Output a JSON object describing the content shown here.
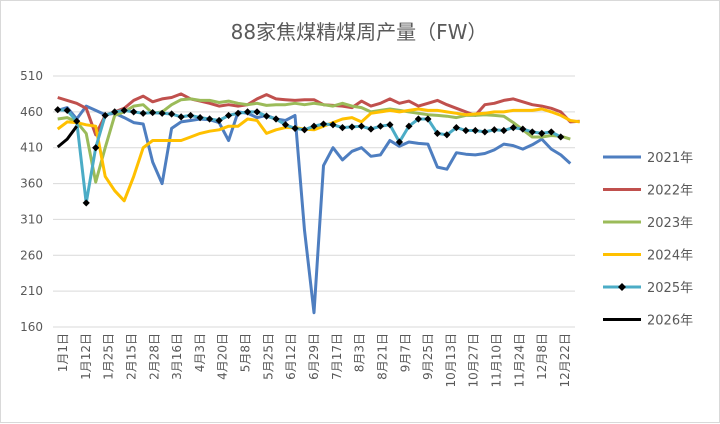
{
  "chart_data": {
    "type": "line",
    "title": "88家焦煤精煤周产量（FW）",
    "ylim": [
      160,
      510
    ],
    "yticks": [
      160,
      210,
      260,
      310,
      360,
      410,
      460,
      510
    ],
    "x_tick_labels": [
      "1月1日",
      "1月12日",
      "1月25日",
      "2月15日",
      "2月28日",
      "3月16日",
      "4月3日",
      "4月20日",
      "5月8日",
      "5月25日",
      "6月12日",
      "6月29日",
      "7月17日",
      "8月3日",
      "8月21日",
      "9月7日",
      "9月25日",
      "10月13日",
      "10月27日",
      "11月10日",
      "11月24日",
      "12月8日",
      "12月22日"
    ],
    "n_weeks": 52,
    "grid": "horizontal",
    "legend": "right",
    "series": [
      {
        "name": "2021年",
        "color": "#4e7ec0",
        "marker": "none",
        "values": [
          462,
          466,
          450,
          468,
          462,
          456,
          458,
          452,
          445,
          443,
          390,
          360,
          437,
          446,
          448,
          450,
          449,
          445,
          420,
          460,
          458,
          452,
          455,
          450,
          448,
          455,
          295,
          180,
          385,
          410,
          393,
          405,
          410,
          398,
          400,
          420,
          412,
          418,
          416,
          415,
          383,
          380,
          403,
          401,
          400,
          402,
          407,
          415,
          413,
          408,
          414,
          422,
          408,
          400,
          388
        ]
      },
      {
        "name": "2022年",
        "color": "#c0504d",
        "marker": "none",
        "values": [
          480,
          476,
          472,
          465,
          428,
          455,
          460,
          465,
          476,
          482,
          474,
          478,
          480,
          485,
          478,
          475,
          472,
          468,
          470,
          468,
          470,
          478,
          484,
          478,
          477,
          476,
          477,
          477,
          470,
          469,
          468,
          466,
          475,
          468,
          472,
          478,
          472,
          475,
          468,
          472,
          476,
          470,
          465,
          460,
          455,
          470,
          472,
          476,
          478,
          474,
          470,
          468,
          465,
          460,
          446,
          447
        ]
      },
      {
        "name": "2023年",
        "color": "#9bbb59",
        "marker": "none",
        "values": [
          450,
          452,
          446,
          430,
          362,
          410,
          455,
          460,
          468,
          470,
          458,
          460,
          470,
          477,
          478,
          476,
          476,
          473,
          475,
          472,
          470,
          472,
          469,
          470,
          470,
          472,
          470,
          472,
          470,
          468,
          472,
          468,
          466,
          460,
          462,
          464,
          462,
          460,
          458,
          456,
          455,
          454,
          452,
          455,
          455,
          456,
          455,
          454,
          445,
          435,
          425,
          425,
          427,
          426,
          422
        ]
      },
      {
        "name": "2024年",
        "color": "#ffc000",
        "marker": "none",
        "values": [
          436,
          446,
          445,
          442,
          440,
          370,
          350,
          336,
          370,
          410,
          420,
          420,
          420,
          420,
          425,
          430,
          433,
          435,
          440,
          440,
          450,
          448,
          430,
          435,
          438,
          438,
          436,
          435,
          440,
          445,
          450,
          452,
          446,
          458,
          460,
          462,
          460,
          462,
          464,
          462,
          462,
          460,
          458,
          456,
          457,
          458,
          460,
          460,
          462,
          462,
          462,
          464,
          460,
          455,
          448,
          446
        ]
      },
      {
        "name": "2025年",
        "color": "#4bacc6",
        "marker": "diamond",
        "values": [
          463,
          462,
          447,
          333,
          410,
          455,
          460,
          462,
          460,
          458,
          459,
          458,
          457,
          453,
          455,
          452,
          450,
          448,
          455,
          458,
          460,
          460,
          454,
          450,
          442,
          437,
          435,
          440,
          443,
          442,
          438,
          439,
          440,
          436,
          440,
          442,
          418,
          440,
          450,
          450,
          430,
          428,
          438,
          434,
          434,
          432,
          435,
          434,
          438,
          436,
          432,
          430,
          432,
          425
        ]
      },
      {
        "name": "2026年",
        "color": "#000000",
        "marker": "none",
        "values": [
          411,
          422,
          440
        ]
      }
    ]
  }
}
